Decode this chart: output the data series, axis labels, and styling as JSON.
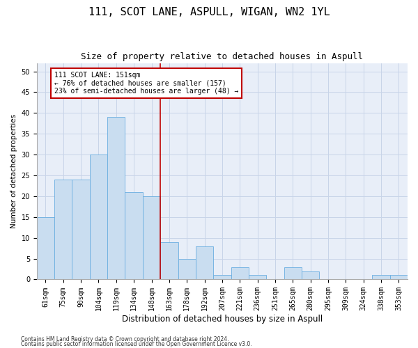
{
  "title": "111, SCOT LANE, ASPULL, WIGAN, WN2 1YL",
  "subtitle": "Size of property relative to detached houses in Aspull",
  "xlabel": "Distribution of detached houses by size in Aspull",
  "ylabel": "Number of detached properties",
  "categories": [
    "61sqm",
    "75sqm",
    "90sqm",
    "104sqm",
    "119sqm",
    "134sqm",
    "148sqm",
    "163sqm",
    "178sqm",
    "192sqm",
    "207sqm",
    "221sqm",
    "236sqm",
    "251sqm",
    "265sqm",
    "280sqm",
    "295sqm",
    "309sqm",
    "324sqm",
    "338sqm",
    "353sqm"
  ],
  "values": [
    15,
    24,
    24,
    30,
    39,
    21,
    20,
    9,
    5,
    8,
    1,
    3,
    1,
    0,
    3,
    2,
    0,
    0,
    0,
    1,
    1
  ],
  "bar_color": "#c9ddf0",
  "bar_edge_color": "#6aaee0",
  "property_line_x": 6.5,
  "property_line_color": "#c00000",
  "annotation_text": "111 SCOT LANE: 151sqm\n← 76% of detached houses are smaller (157)\n23% of semi-detached houses are larger (48) →",
  "annotation_box_color": "#ffffff",
  "annotation_box_edge_color": "#c00000",
  "ylim": [
    0,
    52
  ],
  "yticks": [
    0,
    5,
    10,
    15,
    20,
    25,
    30,
    35,
    40,
    45,
    50
  ],
  "grid_color": "#c8d4e8",
  "background_color": "#e8eef8",
  "footer_line1": "Contains HM Land Registry data © Crown copyright and database right 2024.",
  "footer_line2": "Contains public sector information licensed under the Open Government Licence v3.0.",
  "title_fontsize": 11,
  "subtitle_fontsize": 9,
  "xlabel_fontsize": 8.5,
  "ylabel_fontsize": 7.5,
  "tick_fontsize": 7,
  "annotation_fontsize": 7,
  "footer_fontsize": 5.5
}
